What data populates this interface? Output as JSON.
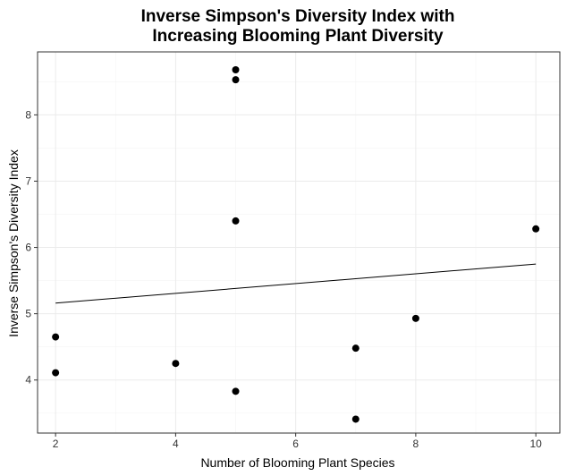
{
  "chart_data": {
    "type": "scatter",
    "title_lines": [
      "Inverse Simpson's Diversity Index with",
      "Increasing Blooming Plant Diversity"
    ],
    "xlabel": "Number of Blooming Plant Species",
    "ylabel": "Inverse Simpson's Diversity Index",
    "xlim": [
      1.7,
      10.4
    ],
    "ylim": [
      3.2,
      8.95
    ],
    "x_ticks": [
      2,
      4,
      6,
      8,
      10
    ],
    "x_tick_labels": [
      "2",
      "4",
      "6",
      "8",
      "10"
    ],
    "y_ticks": [
      4,
      5,
      6,
      7,
      8
    ],
    "y_tick_labels": [
      "4",
      "5",
      "6",
      "7",
      "8"
    ],
    "grid": true,
    "legend": "none",
    "point_color": "#000000",
    "line_color": "#000000",
    "panel_border_color": "#333333",
    "grid_major_color": "#ebebeb",
    "grid_minor_color": "#f4f4f4",
    "points": [
      {
        "x": 2,
        "y": 4.65
      },
      {
        "x": 2,
        "y": 4.11
      },
      {
        "x": 4,
        "y": 4.25
      },
      {
        "x": 5,
        "y": 8.68
      },
      {
        "x": 5,
        "y": 8.53
      },
      {
        "x": 5,
        "y": 6.4
      },
      {
        "x": 5,
        "y": 3.83
      },
      {
        "x": 7,
        "y": 4.48
      },
      {
        "x": 7,
        "y": 3.41
      },
      {
        "x": 8,
        "y": 4.93
      },
      {
        "x": 10,
        "y": 6.28
      }
    ],
    "fit_line": {
      "x": [
        2,
        10
      ],
      "y": [
        5.16,
        5.75
      ]
    }
  }
}
